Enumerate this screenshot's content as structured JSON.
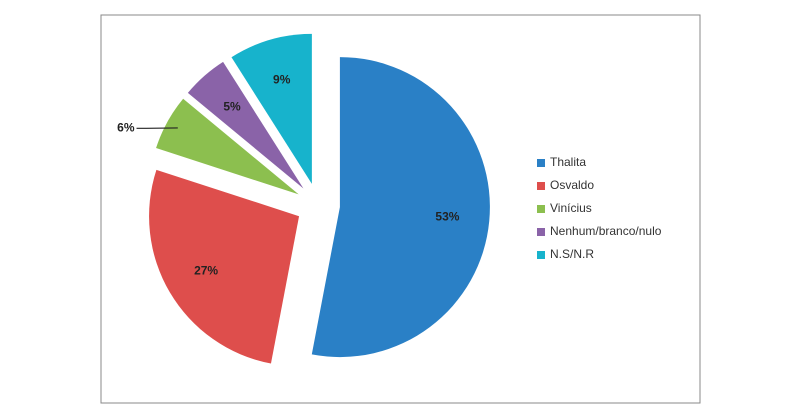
{
  "chart_data": {
    "type": "pie",
    "categories": [
      "Thalita",
      "Osvaldo",
      "Vinícius",
      "Nenhum/branco/nulo",
      "N.S/N.R"
    ],
    "values": [
      53,
      27,
      6,
      5,
      9
    ],
    "value_labels": [
      "53%",
      "27%",
      "6%",
      "5%",
      "9%"
    ],
    "colors": [
      "#2a80c6",
      "#de4e4c",
      "#8cbf4f",
      "#8a63a8",
      "#17b3cc"
    ],
    "legend": "right"
  }
}
